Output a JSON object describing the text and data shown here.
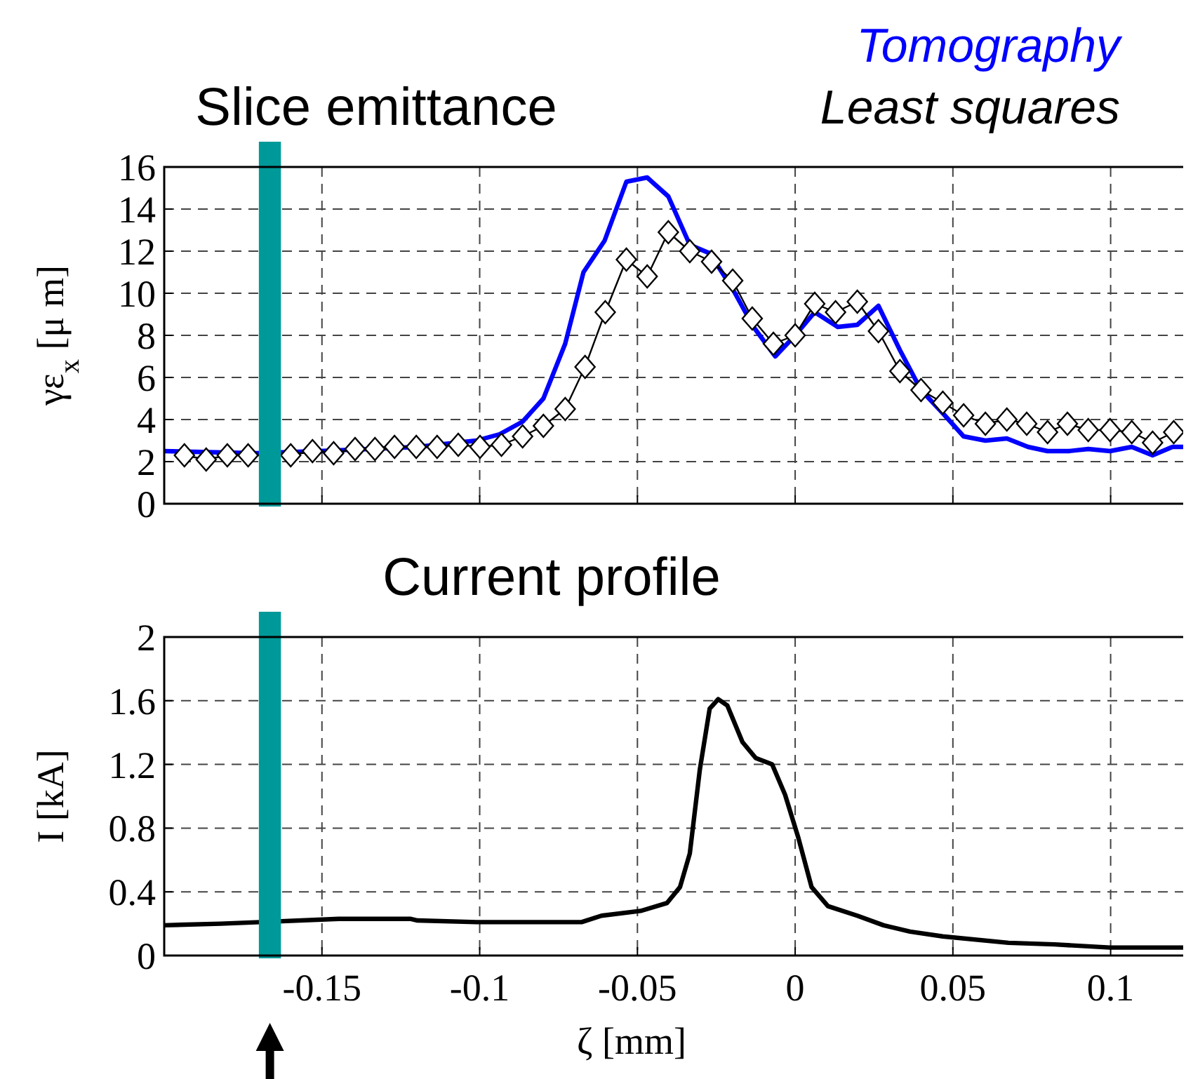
{
  "chart_data": [
    {
      "type": "line",
      "title": "Slice emittance",
      "ylabel": "γε$_{x}$ [μ m]",
      "xlim": [
        -0.2,
        0.123
      ],
      "xticks": [
        -0.15,
        -0.1,
        -0.05,
        0,
        0.05,
        0.1
      ],
      "ylim": [
        0,
        16
      ],
      "yticks": [
        0,
        2,
        4,
        6,
        8,
        10,
        12,
        14,
        16
      ],
      "grid": true,
      "tick_labels": "y",
      "legend": "top right",
      "bands": [
        {
          "axis": "x",
          "from": -0.17,
          "to": -0.163,
          "color": "#009999"
        }
      ],
      "series": [
        {
          "name": "Tomography",
          "color": "#0000ff",
          "marker": "none",
          "x": [
            -0.2,
            -0.1707,
            -0.1509,
            -0.1197,
            -0.101,
            -0.0937,
            -0.0864,
            -0.0798,
            -0.0729,
            -0.0671,
            -0.0604,
            -0.0535,
            -0.0469,
            -0.0402,
            -0.0334,
            -0.0271,
            -0.0198,
            -0.0132,
            -0.0063,
            0,
            0.0062,
            0.0135,
            0.0197,
            0.0264,
            0.0332,
            0.0399,
            0.0468,
            0.0534,
            0.0603,
            0.0671,
            0.0738,
            0.08,
            0.0867,
            0.0929,
            0.0998,
            0.1067,
            0.1133,
            0.1196,
            0.123
          ],
          "values": [
            2.5,
            2.4,
            2.5,
            2.7,
            3.0,
            3.3,
            3.9,
            5.0,
            7.6,
            11.0,
            12.5,
            15.3,
            15.5,
            14.6,
            12.3,
            11.9,
            10.2,
            8.4,
            7.0,
            8.0,
            9.1,
            8.4,
            8.5,
            9.4,
            7.3,
            5.4,
            4.3,
            3.2,
            3.0,
            3.1,
            2.7,
            2.5,
            2.5,
            2.6,
            2.5,
            2.7,
            2.3,
            2.7,
            2.7
          ]
        },
        {
          "name": "Least squares",
          "color": "#000000",
          "marker": "diamond",
          "x": [
            -0.1936,
            -0.1867,
            -0.18,
            -0.1734,
            -0.1599,
            -0.153,
            -0.1463,
            -0.1395,
            -0.1332,
            -0.127,
            -0.1201,
            -0.1135,
            -0.1068,
            -0.0999,
            -0.0931,
            -0.0864,
            -0.0798,
            -0.0729,
            -0.0666,
            -0.0602,
            -0.0535,
            -0.0469,
            -0.0402,
            -0.0334,
            -0.0265,
            -0.0198,
            -0.0136,
            -0.0069,
            0,
            0.0062,
            0.0128,
            0.0197,
            0.0264,
            0.0332,
            0.0399,
            0.0468,
            0.0534,
            0.0603,
            0.0671,
            0.0734,
            0.08,
            0.0863,
            0.0929,
            0.0998,
            0.1067,
            0.1133,
            0.12
          ],
          "values": [
            2.3,
            2.1,
            2.3,
            2.3,
            2.3,
            2.5,
            2.4,
            2.6,
            2.6,
            2.7,
            2.7,
            2.7,
            2.8,
            2.7,
            2.8,
            3.2,
            3.7,
            4.5,
            6.5,
            9.1,
            11.6,
            10.8,
            12.9,
            12.0,
            11.5,
            10.6,
            8.8,
            7.6,
            8.0,
            9.5,
            9.1,
            9.6,
            8.2,
            6.3,
            5.4,
            4.8,
            4.2,
            3.8,
            4.0,
            3.8,
            3.4,
            3.8,
            3.5,
            3.5,
            3.4,
            2.9,
            3.4
          ]
        }
      ]
    },
    {
      "type": "line",
      "title": "Current profile",
      "xlabel": "ζ [mm]",
      "ylabel": "I [kA]",
      "xlim": [
        -0.2,
        0.123
      ],
      "xticks": [
        -0.15,
        -0.1,
        -0.05,
        0,
        0.05,
        0.1
      ],
      "ylim": [
        0,
        2
      ],
      "yticks": [
        0,
        0.4,
        0.8,
        1.2,
        1.6,
        2
      ],
      "grid": true,
      "bands": [
        {
          "axis": "x",
          "from": -0.17,
          "to": -0.163,
          "color": "#009999"
        }
      ],
      "series": [
        {
          "color": "#000000",
          "marker": "none",
          "x": [
            -0.2,
            -0.1821,
            -0.1696,
            -0.1447,
            -0.1218,
            -0.1197,
            -0.101,
            -0.0677,
            -0.0614,
            -0.049,
            -0.0406,
            -0.0365,
            -0.0334,
            -0.0302,
            -0.0271,
            -0.0244,
            -0.0215,
            -0.0167,
            -0.0125,
            -0.0073,
            -0.0032,
            0.001,
            0.0052,
            0.0104,
            0.0197,
            0.028,
            0.0364,
            0.0468,
            0.0676,
            0.0822,
            0.0998,
            0.123
          ],
          "values": [
            0.19,
            0.2,
            0.21,
            0.23,
            0.23,
            0.22,
            0.21,
            0.21,
            0.25,
            0.28,
            0.33,
            0.43,
            0.64,
            1.17,
            1.55,
            1.61,
            1.57,
            1.34,
            1.24,
            1.2,
            1.01,
            0.74,
            0.43,
            0.31,
            0.25,
            0.19,
            0.15,
            0.12,
            0.08,
            0.07,
            0.05,
            0.05
          ]
        }
      ]
    }
  ]
}
